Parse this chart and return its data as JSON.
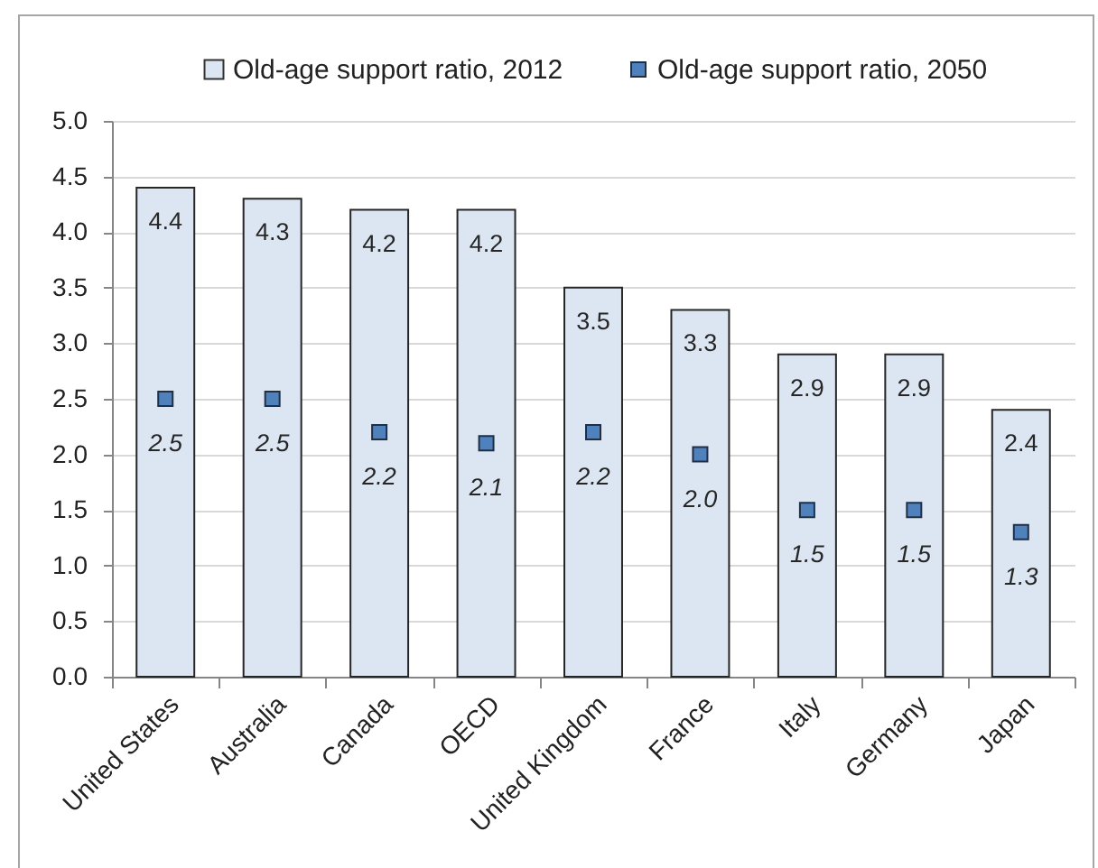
{
  "chart_data": {
    "type": "bar",
    "categories": [
      "United States",
      "Australia",
      "Canada",
      "OECD",
      "United Kingdom",
      "France",
      "Italy",
      "Germany",
      "Japan"
    ],
    "series": [
      {
        "name": "Old-age support ratio, 2012",
        "color": "#dce6f2",
        "values": [
          4.4,
          4.3,
          4.2,
          4.2,
          3.5,
          3.3,
          2.9,
          2.9,
          2.4
        ],
        "value_labels": [
          "4.4",
          "4.3",
          "4.2",
          "4.2",
          "3.5",
          "3.3",
          "2.9",
          "2.9",
          "2.4"
        ]
      },
      {
        "name": "Old-age support ratio, 2050",
        "type": "scatter",
        "marker": "square",
        "color": "#4f81bd",
        "values": [
          2.5,
          2.5,
          2.2,
          2.1,
          2.2,
          2.0,
          1.5,
          1.5,
          1.3
        ],
        "value_labels": [
          "2.5",
          "2.5",
          "2.2",
          "2.1",
          "2.2",
          "2.0",
          "1.5",
          "1.5",
          "1.3"
        ]
      }
    ],
    "ylim": [
      0,
      5
    ],
    "yticks": [
      {
        "value": 0,
        "label": "0.0"
      },
      {
        "value": 0.5,
        "label": "0.5"
      },
      {
        "value": 1,
        "label": "1.0"
      },
      {
        "value": 1.5,
        "label": "1.5"
      },
      {
        "value": 2,
        "label": "2.0"
      },
      {
        "value": 2.5,
        "label": "2.5"
      },
      {
        "value": 3,
        "label": "3.0"
      },
      {
        "value": 3.5,
        "label": "3.5"
      },
      {
        "value": 4,
        "label": "4.0"
      },
      {
        "value": 4.5,
        "label": "4.5"
      },
      {
        "value": 5,
        "label": "5.0"
      }
    ],
    "grid": "y",
    "legend": "top"
  }
}
